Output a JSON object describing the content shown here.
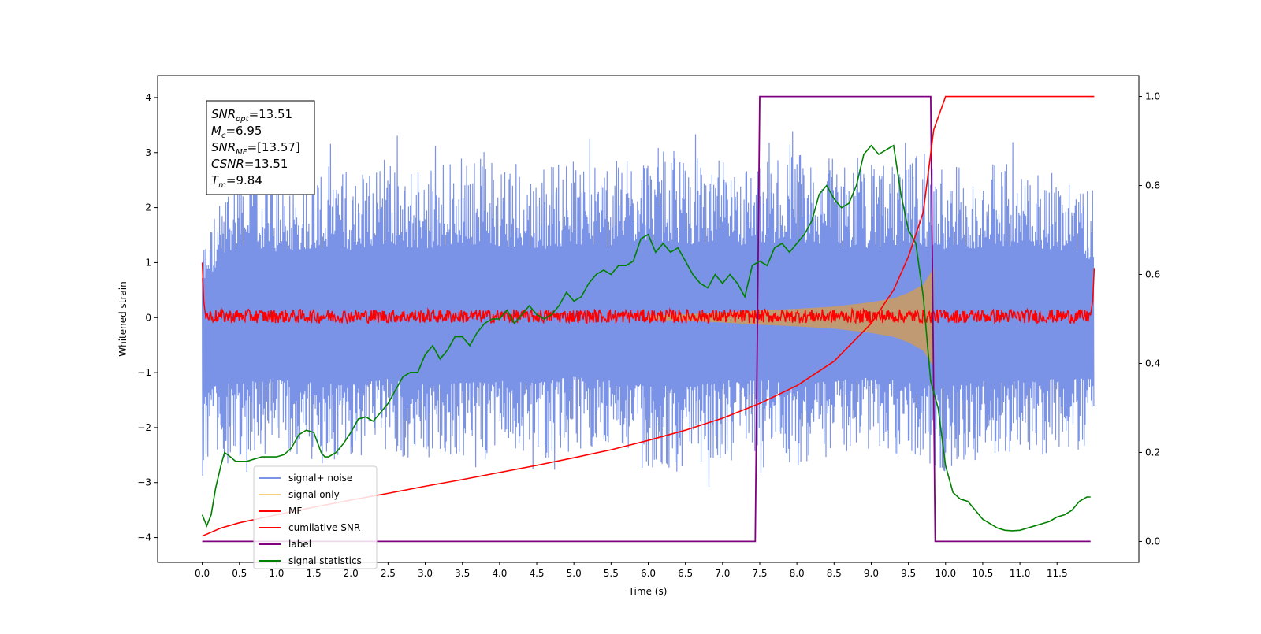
{
  "chart_data": {
    "type": "line",
    "xlabel": "Time (s)",
    "ylabel": "Whitened strain",
    "xlim": [
      -0.6,
      12.6
    ],
    "ylim_left": [
      -4.45,
      4.4
    ],
    "ylim_right": [
      -0.047,
      1.047
    ],
    "x_ticks": [
      "0.0",
      "0.5",
      "1.0",
      "1.5",
      "2.0",
      "2.5",
      "3.0",
      "3.5",
      "4.0",
      "4.5",
      "5.0",
      "5.5",
      "6.0",
      "6.5",
      "7.0",
      "7.5",
      "8.0",
      "8.5",
      "9.0",
      "9.5",
      "10.0",
      "10.5",
      "11.0",
      "11.5"
    ],
    "y_ticks_left": [
      "4",
      "3",
      "2",
      "1",
      "0",
      "−1",
      "−2",
      "−3",
      "−4"
    ],
    "y_ticks_right": [
      "1.0",
      "0.8",
      "0.6",
      "0.4",
      "0.2",
      "0.0"
    ],
    "info_box": {
      "lines": [
        {
          "base": "SNR",
          "sub": "opt",
          "value": "=13.51"
        },
        {
          "base": "M",
          "sub": "c",
          "value": "=6.95"
        },
        {
          "base": "SNR",
          "sub": "MF",
          "value": "=[13.57]"
        },
        {
          "base": "CSNR",
          "sub": "",
          "value": "=13.51"
        },
        {
          "base": "T",
          "sub": "m",
          "value": "=9.84"
        }
      ]
    },
    "legend": {
      "placement": "lower-left",
      "entries": [
        {
          "label": "signal+ noise",
          "color": "#7b93e6"
        },
        {
          "label": "signal only",
          "color": "#f5cf7a"
        },
        {
          "label": "MF",
          "color": "#ff0000"
        },
        {
          "label": "cumilative SNR",
          "color": "#ff0000"
        },
        {
          "label": "label",
          "color": "#800080"
        },
        {
          "label": "signal statistics",
          "color": "#008000"
        }
      ]
    },
    "series": [
      {
        "name": "signal+ noise",
        "axis": "left",
        "color": "#7b93e6",
        "envelope": {
          "x": [
            0.0,
            0.5,
            1.0,
            1.5,
            2.0,
            2.5,
            3.0,
            3.5,
            4.0,
            4.5,
            5.0,
            5.5,
            6.0,
            6.5,
            7.0,
            7.5,
            8.0,
            8.5,
            9.0,
            9.5,
            10.0,
            10.5,
            11.0,
            11.5,
            12.0
          ],
          "upper": [
            1.6,
            3.5,
            3.1,
            3.3,
            3.2,
            3.5,
            3.2,
            3.5,
            3.4,
            3.2,
            3.5,
            3.3,
            3.7,
            3.5,
            3.4,
            3.4,
            3.6,
            3.4,
            3.3,
            3.5,
            3.2,
            3.3,
            3.4,
            3.2,
            2.7
          ],
          "lower": [
            -3.4,
            -3.0,
            -2.9,
            -3.1,
            -3.2,
            -2.9,
            -3.2,
            -3.1,
            -3.0,
            -3.1,
            -2.8,
            -3.0,
            -3.2,
            -3.3,
            -3.0,
            -2.9,
            -3.2,
            -3.0,
            -2.8,
            -3.1,
            -3.3,
            -3.0,
            -3.0,
            -2.9,
            -2.9
          ]
        }
      },
      {
        "name": "signal only",
        "axis": "left",
        "color": "#c49a6c",
        "envelope": {
          "x": [
            6.0,
            6.5,
            7.0,
            7.5,
            8.0,
            8.5,
            9.0,
            9.3,
            9.5,
            9.7,
            9.84
          ],
          "amplitude": [
            0.04,
            0.06,
            0.09,
            0.13,
            0.16,
            0.2,
            0.28,
            0.35,
            0.45,
            0.6,
            0.9
          ]
        }
      },
      {
        "name": "MF",
        "axis": "left",
        "color": "#ff0000",
        "noise_band": [
          -0.1,
          0.15
        ],
        "x": [
          0.0,
          0.02,
          0.05,
          11.95,
          11.98,
          12.0
        ],
        "y": [
          1.0,
          0.3,
          0.05,
          0.05,
          0.3,
          0.9
        ]
      },
      {
        "name": "cumilative SNR",
        "axis": "right",
        "color": "#ff0000",
        "x": [
          0.0,
          0.25,
          0.5,
          1.0,
          1.5,
          2.0,
          2.5,
          3.0,
          3.5,
          4.0,
          4.5,
          5.0,
          5.5,
          6.0,
          6.5,
          7.0,
          7.5,
          8.0,
          8.5,
          9.0,
          9.3,
          9.5,
          9.7,
          9.84,
          10.0,
          12.0
        ],
        "y": [
          0.012,
          0.03,
          0.042,
          0.06,
          0.077,
          0.093,
          0.108,
          0.124,
          0.139,
          0.155,
          0.171,
          0.188,
          0.206,
          0.227,
          0.25,
          0.277,
          0.31,
          0.35,
          0.405,
          0.49,
          0.565,
          0.64,
          0.74,
          0.925,
          1.0,
          1.0
        ]
      },
      {
        "name": "label",
        "axis": "right",
        "color": "#800080",
        "x": [
          0.0,
          7.44,
          7.5,
          9.8,
          9.86,
          11.95
        ],
        "y": [
          0.0,
          0.0,
          1.0,
          1.0,
          0.0,
          0.0
        ]
      },
      {
        "name": "signal statistics",
        "axis": "right",
        "color": "#008000",
        "x": [
          0.0,
          0.06,
          0.12,
          0.18,
          0.25,
          0.3,
          0.38,
          0.45,
          0.5,
          0.6,
          0.7,
          0.8,
          0.9,
          1.0,
          1.1,
          1.2,
          1.3,
          1.4,
          1.5,
          1.6,
          1.65,
          1.7,
          1.8,
          1.9,
          2.0,
          2.1,
          2.2,
          2.3,
          2.4,
          2.5,
          2.6,
          2.7,
          2.8,
          2.9,
          3.0,
          3.1,
          3.2,
          3.3,
          3.4,
          3.5,
          3.6,
          3.7,
          3.8,
          3.9,
          4.0,
          4.1,
          4.2,
          4.3,
          4.4,
          4.5,
          4.6,
          4.7,
          4.8,
          4.9,
          5.0,
          5.1,
          5.2,
          5.3,
          5.4,
          5.5,
          5.6,
          5.7,
          5.8,
          5.9,
          6.0,
          6.1,
          6.2,
          6.3,
          6.4,
          6.5,
          6.6,
          6.7,
          6.8,
          6.9,
          7.0,
          7.1,
          7.2,
          7.3,
          7.4,
          7.5,
          7.6,
          7.7,
          7.8,
          7.9,
          8.0,
          8.1,
          8.2,
          8.3,
          8.4,
          8.5,
          8.6,
          8.7,
          8.8,
          8.9,
          9.0,
          9.1,
          9.2,
          9.3,
          9.4,
          9.5,
          9.6,
          9.7,
          9.8,
          9.9,
          10.0,
          10.1,
          10.2,
          10.3,
          10.4,
          10.5,
          10.6,
          10.7,
          10.8,
          10.9,
          11.0,
          11.1,
          11.2,
          11.3,
          11.4,
          11.5,
          11.6,
          11.7,
          11.8,
          11.9,
          11.95
        ],
        "y": [
          0.06,
          0.035,
          0.06,
          0.12,
          0.17,
          0.2,
          0.19,
          0.18,
          0.18,
          0.18,
          0.185,
          0.19,
          0.19,
          0.19,
          0.195,
          0.21,
          0.24,
          0.25,
          0.245,
          0.2,
          0.19,
          0.19,
          0.2,
          0.22,
          0.245,
          0.275,
          0.28,
          0.27,
          0.29,
          0.31,
          0.34,
          0.37,
          0.38,
          0.38,
          0.42,
          0.44,
          0.41,
          0.43,
          0.46,
          0.46,
          0.44,
          0.47,
          0.49,
          0.5,
          0.5,
          0.52,
          0.49,
          0.51,
          0.53,
          0.51,
          0.5,
          0.51,
          0.53,
          0.56,
          0.54,
          0.55,
          0.58,
          0.6,
          0.61,
          0.6,
          0.62,
          0.62,
          0.63,
          0.68,
          0.69,
          0.65,
          0.67,
          0.65,
          0.66,
          0.63,
          0.6,
          0.58,
          0.57,
          0.6,
          0.58,
          0.6,
          0.58,
          0.55,
          0.62,
          0.63,
          0.62,
          0.66,
          0.67,
          0.65,
          0.67,
          0.69,
          0.72,
          0.78,
          0.8,
          0.77,
          0.75,
          0.76,
          0.8,
          0.87,
          0.89,
          0.87,
          0.88,
          0.89,
          0.78,
          0.7,
          0.67,
          0.55,
          0.36,
          0.3,
          0.17,
          0.11,
          0.095,
          0.09,
          0.07,
          0.05,
          0.04,
          0.03,
          0.025,
          0.024,
          0.025,
          0.03,
          0.035,
          0.04,
          0.045,
          0.055,
          0.06,
          0.07,
          0.09,
          0.1,
          0.1
        ]
      }
    ]
  }
}
